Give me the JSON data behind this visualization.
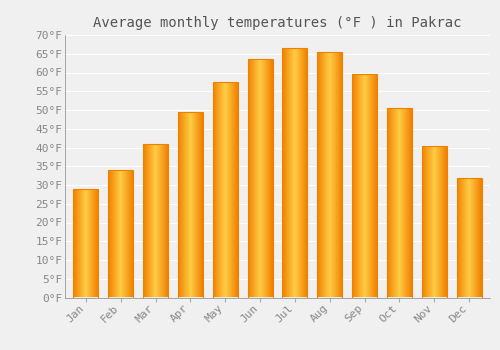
{
  "title": "Average monthly temperatures (°F ) in Pakrac",
  "months": [
    "Jan",
    "Feb",
    "Mar",
    "Apr",
    "May",
    "Jun",
    "Jul",
    "Aug",
    "Sep",
    "Oct",
    "Nov",
    "Dec"
  ],
  "values": [
    29,
    34,
    41,
    49.5,
    57.5,
    63.5,
    66.5,
    65.5,
    59.5,
    50.5,
    40.5,
    32
  ],
  "bar_color_center": "#FFCC44",
  "bar_color_edge": "#F08000",
  "background_color": "#F0F0F0",
  "grid_color": "#FFFFFF",
  "ylim": [
    0,
    70
  ],
  "ytick_step": 5,
  "title_fontsize": 10,
  "tick_fontsize": 8,
  "font_family": "monospace",
  "tick_color": "#888888",
  "title_color": "#555555"
}
